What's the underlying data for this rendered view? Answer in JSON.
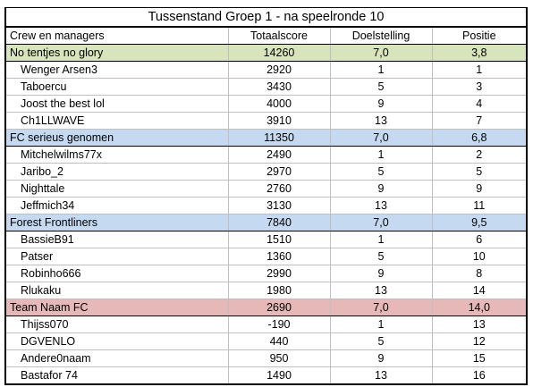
{
  "title": "Tussenstand Groep 1 - na speelronde 10",
  "columns": [
    "Crew en managers",
    "Totaalscore",
    "Doelstelling",
    "Positie"
  ],
  "teams": [
    {
      "name": "No tentjes no glory",
      "total": "14260",
      "goal": "7,0",
      "position": "3,8",
      "color": "#d8e4bc",
      "managers": [
        {
          "name": "Wenger Arsen3",
          "total": "2920",
          "goal": "1",
          "position": "1"
        },
        {
          "name": "Taboercu",
          "total": "3430",
          "goal": "5",
          "position": "3"
        },
        {
          "name": "Joost the best lol",
          "total": "4000",
          "goal": "9",
          "position": "4"
        },
        {
          "name": "Ch1LLWAVE",
          "total": "3910",
          "goal": "13",
          "position": "7"
        }
      ]
    },
    {
      "name": "FC serieus genomen",
      "total": "11350",
      "goal": "7,0",
      "position": "6,8",
      "color": "#c5d9f1",
      "managers": [
        {
          "name": "Mitchelwilms77x",
          "total": "2490",
          "goal": "1",
          "position": "2"
        },
        {
          "name": "Jaribo_2",
          "total": "2970",
          "goal": "5",
          "position": "5"
        },
        {
          "name": "Nighttale",
          "total": "2760",
          "goal": "9",
          "position": "9"
        },
        {
          "name": "Jeffmich34",
          "total": "3130",
          "goal": "13",
          "position": "11"
        }
      ]
    },
    {
      "name": "Forest Frontliners",
      "total": "7840",
      "goal": "7,0",
      "position": "9,5",
      "color": "#c5d9f1",
      "managers": [
        {
          "name": "BassieB91",
          "total": "1510",
          "goal": "1",
          "position": "6"
        },
        {
          "name": "Patser",
          "total": "1360",
          "goal": "5",
          "position": "10"
        },
        {
          "name": "Robinho666",
          "total": "2990",
          "goal": "9",
          "position": "8"
        },
        {
          "name": "Rlukaku",
          "total": "1980",
          "goal": "13",
          "position": "14"
        }
      ]
    },
    {
      "name": "Team Naam FC",
      "total": "2690",
      "goal": "7,0",
      "position": "14,0",
      "color": "#e6b8b7",
      "managers": [
        {
          "name": "Thijss070",
          "total": "-190",
          "goal": "1",
          "position": "13"
        },
        {
          "name": "DGVENLO",
          "total": "440",
          "goal": "5",
          "position": "12"
        },
        {
          "name": "Andere0naam",
          "total": "950",
          "goal": "9",
          "position": "15"
        },
        {
          "name": "Bastafor 74",
          "total": "1490",
          "goal": "13",
          "position": "16"
        }
      ]
    }
  ]
}
